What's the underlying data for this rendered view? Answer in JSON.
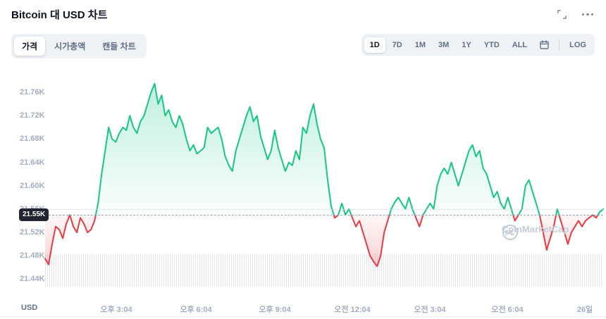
{
  "header": {
    "title": "Bitcoin 대 USD 차트"
  },
  "tabs": {
    "items": [
      {
        "label": "가격",
        "name": "price",
        "active": true
      },
      {
        "label": "시가총액",
        "name": "market-cap",
        "active": false
      },
      {
        "label": "캔들 차트",
        "name": "candle-chart",
        "active": false
      }
    ]
  },
  "range_controls": {
    "items": [
      "1D",
      "7D",
      "1M",
      "3M",
      "1Y",
      "YTD",
      "ALL"
    ],
    "active": "1D",
    "log_label": "LOG"
  },
  "axis": {
    "currency_label": "USD"
  },
  "watermark": {
    "text": "CoinMarketCap"
  },
  "chart_data": {
    "type": "line",
    "title": "Bitcoin 대 USD 차트",
    "current_price_label": "21.55K",
    "threshold": 21.55,
    "dotted_gridline_value": 21.56,
    "ylim": [
      21.42,
      21.8
    ],
    "colors": {
      "up": "#16c784",
      "down": "#ea3943"
    },
    "y_ticks": [
      {
        "label": "21.76K",
        "value": 21.76
      },
      {
        "label": "21.72K",
        "value": 21.72
      },
      {
        "label": "21.68K",
        "value": 21.68
      },
      {
        "label": "21.64K",
        "value": 21.64
      },
      {
        "label": "21.60K",
        "value": 21.6
      },
      {
        "label": "21.56K",
        "value": 21.56
      },
      {
        "label": "21.52K",
        "value": 21.52
      },
      {
        "label": "21.48K",
        "value": 21.48
      },
      {
        "label": "21.44K",
        "value": 21.44
      }
    ],
    "x_ticks": [
      {
        "label": "오후 3:04",
        "pos": 0.128
      },
      {
        "label": "오후 6:04",
        "pos": 0.27
      },
      {
        "label": "오후 9:04",
        "pos": 0.412
      },
      {
        "label": "오전 12:04",
        "pos": 0.55
      },
      {
        "label": "오전 3:04",
        "pos": 0.689
      },
      {
        "label": "오전 6:04",
        "pos": 0.828
      },
      {
        "label": "26일",
        "pos": 0.967
      }
    ],
    "values": [
      21.475,
      21.465,
      21.5,
      21.53,
      21.525,
      21.51,
      21.535,
      21.55,
      21.53,
      21.52,
      21.545,
      21.535,
      21.52,
      21.525,
      21.54,
      21.57,
      21.62,
      21.66,
      21.7,
      21.68,
      21.675,
      21.69,
      21.7,
      21.695,
      21.72,
      21.7,
      21.69,
      21.71,
      21.72,
      21.74,
      21.76,
      21.775,
      21.74,
      21.755,
      21.72,
      21.73,
      21.71,
      21.7,
      21.72,
      21.705,
      21.68,
      21.66,
      21.67,
      21.655,
      21.66,
      21.665,
      21.7,
      21.69,
      21.695,
      21.7,
      21.68,
      21.65,
      21.635,
      21.625,
      21.66,
      21.68,
      21.7,
      21.72,
      21.735,
      21.71,
      21.72,
      21.685,
      21.665,
      21.645,
      21.66,
      21.695,
      21.665,
      21.645,
      21.625,
      21.64,
      21.635,
      21.66,
      21.645,
      21.7,
      21.69,
      21.72,
      21.74,
      21.705,
      21.68,
      21.665,
      21.61,
      21.565,
      21.545,
      21.55,
      21.57,
      21.55,
      21.56,
      21.545,
      21.53,
      21.54,
      21.52,
      21.5,
      21.48,
      21.47,
      21.462,
      21.48,
      21.52,
      21.54,
      21.56,
      21.572,
      21.58,
      21.57,
      21.56,
      21.58,
      21.56,
      21.545,
      21.53,
      21.55,
      21.56,
      21.57,
      21.56,
      21.6,
      21.62,
      21.63,
      21.62,
      21.64,
      21.62,
      21.6,
      21.62,
      21.64,
      21.66,
      21.67,
      21.65,
      21.66,
      21.63,
      21.62,
      21.6,
      21.58,
      21.59,
      21.57,
      21.56,
      21.58,
      21.56,
      21.54,
      21.55,
      21.56,
      21.6,
      21.61,
      21.59,
      21.57,
      21.55,
      21.52,
      21.49,
      21.51,
      21.53,
      21.56,
      21.54,
      21.52,
      21.5,
      21.52,
      21.53,
      21.54,
      21.53,
      21.54,
      21.545,
      21.55,
      21.545,
      21.555,
      21.56
    ]
  }
}
